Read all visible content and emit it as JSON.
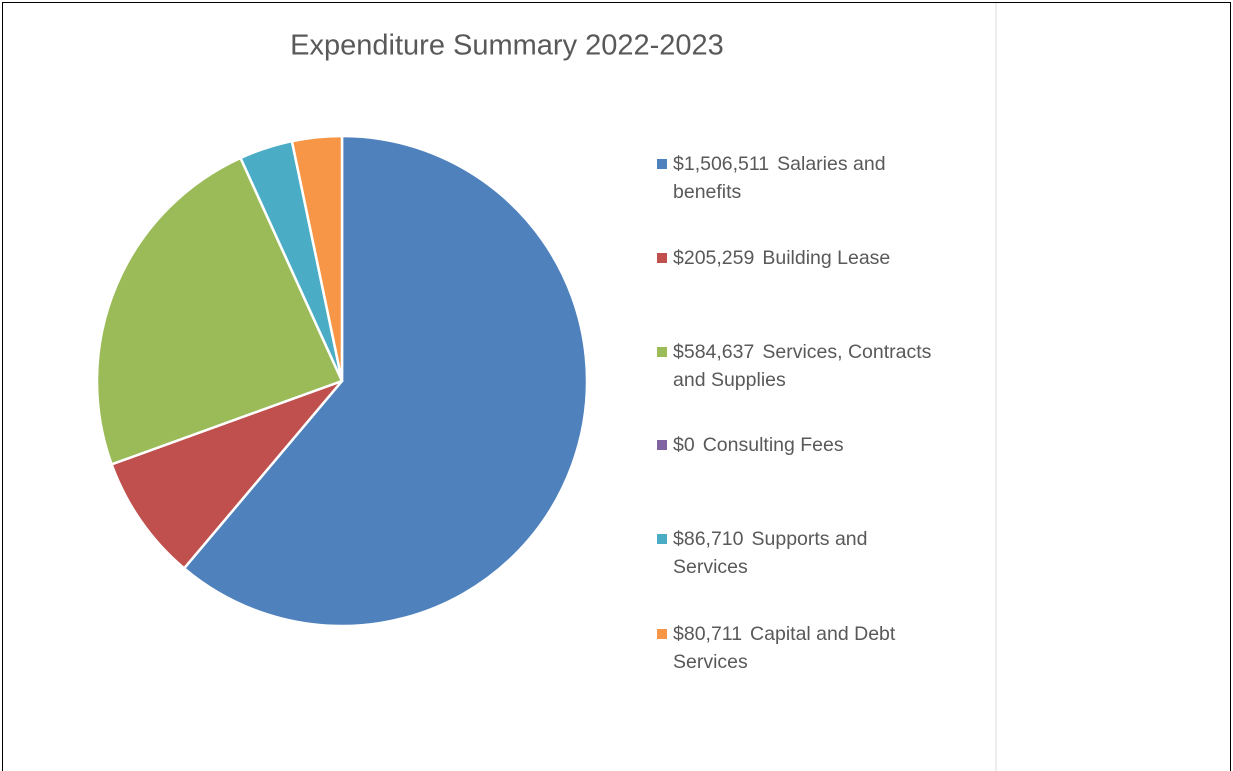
{
  "chart_data": {
    "type": "pie",
    "title": "Expenditure Summary 2022-2023",
    "categories": [
      "Salaries and benefits",
      "Building Lease",
      "Services, Contracts and Supplies",
      "Consulting Fees",
      "Supports and Services",
      "Capital and Debt Services"
    ],
    "values": [
      1506511,
      205259,
      584637,
      0,
      86710,
      80711
    ],
    "value_labels": [
      "$1,506,511",
      "$205,259",
      "$584,637",
      "$0",
      "$86,710",
      "$80,711"
    ],
    "colors": [
      "#4f81bd",
      "#c0504d",
      "#9bbb59",
      "#8064a2",
      "#4bacc6",
      "#f79646"
    ],
    "legend": "right"
  }
}
